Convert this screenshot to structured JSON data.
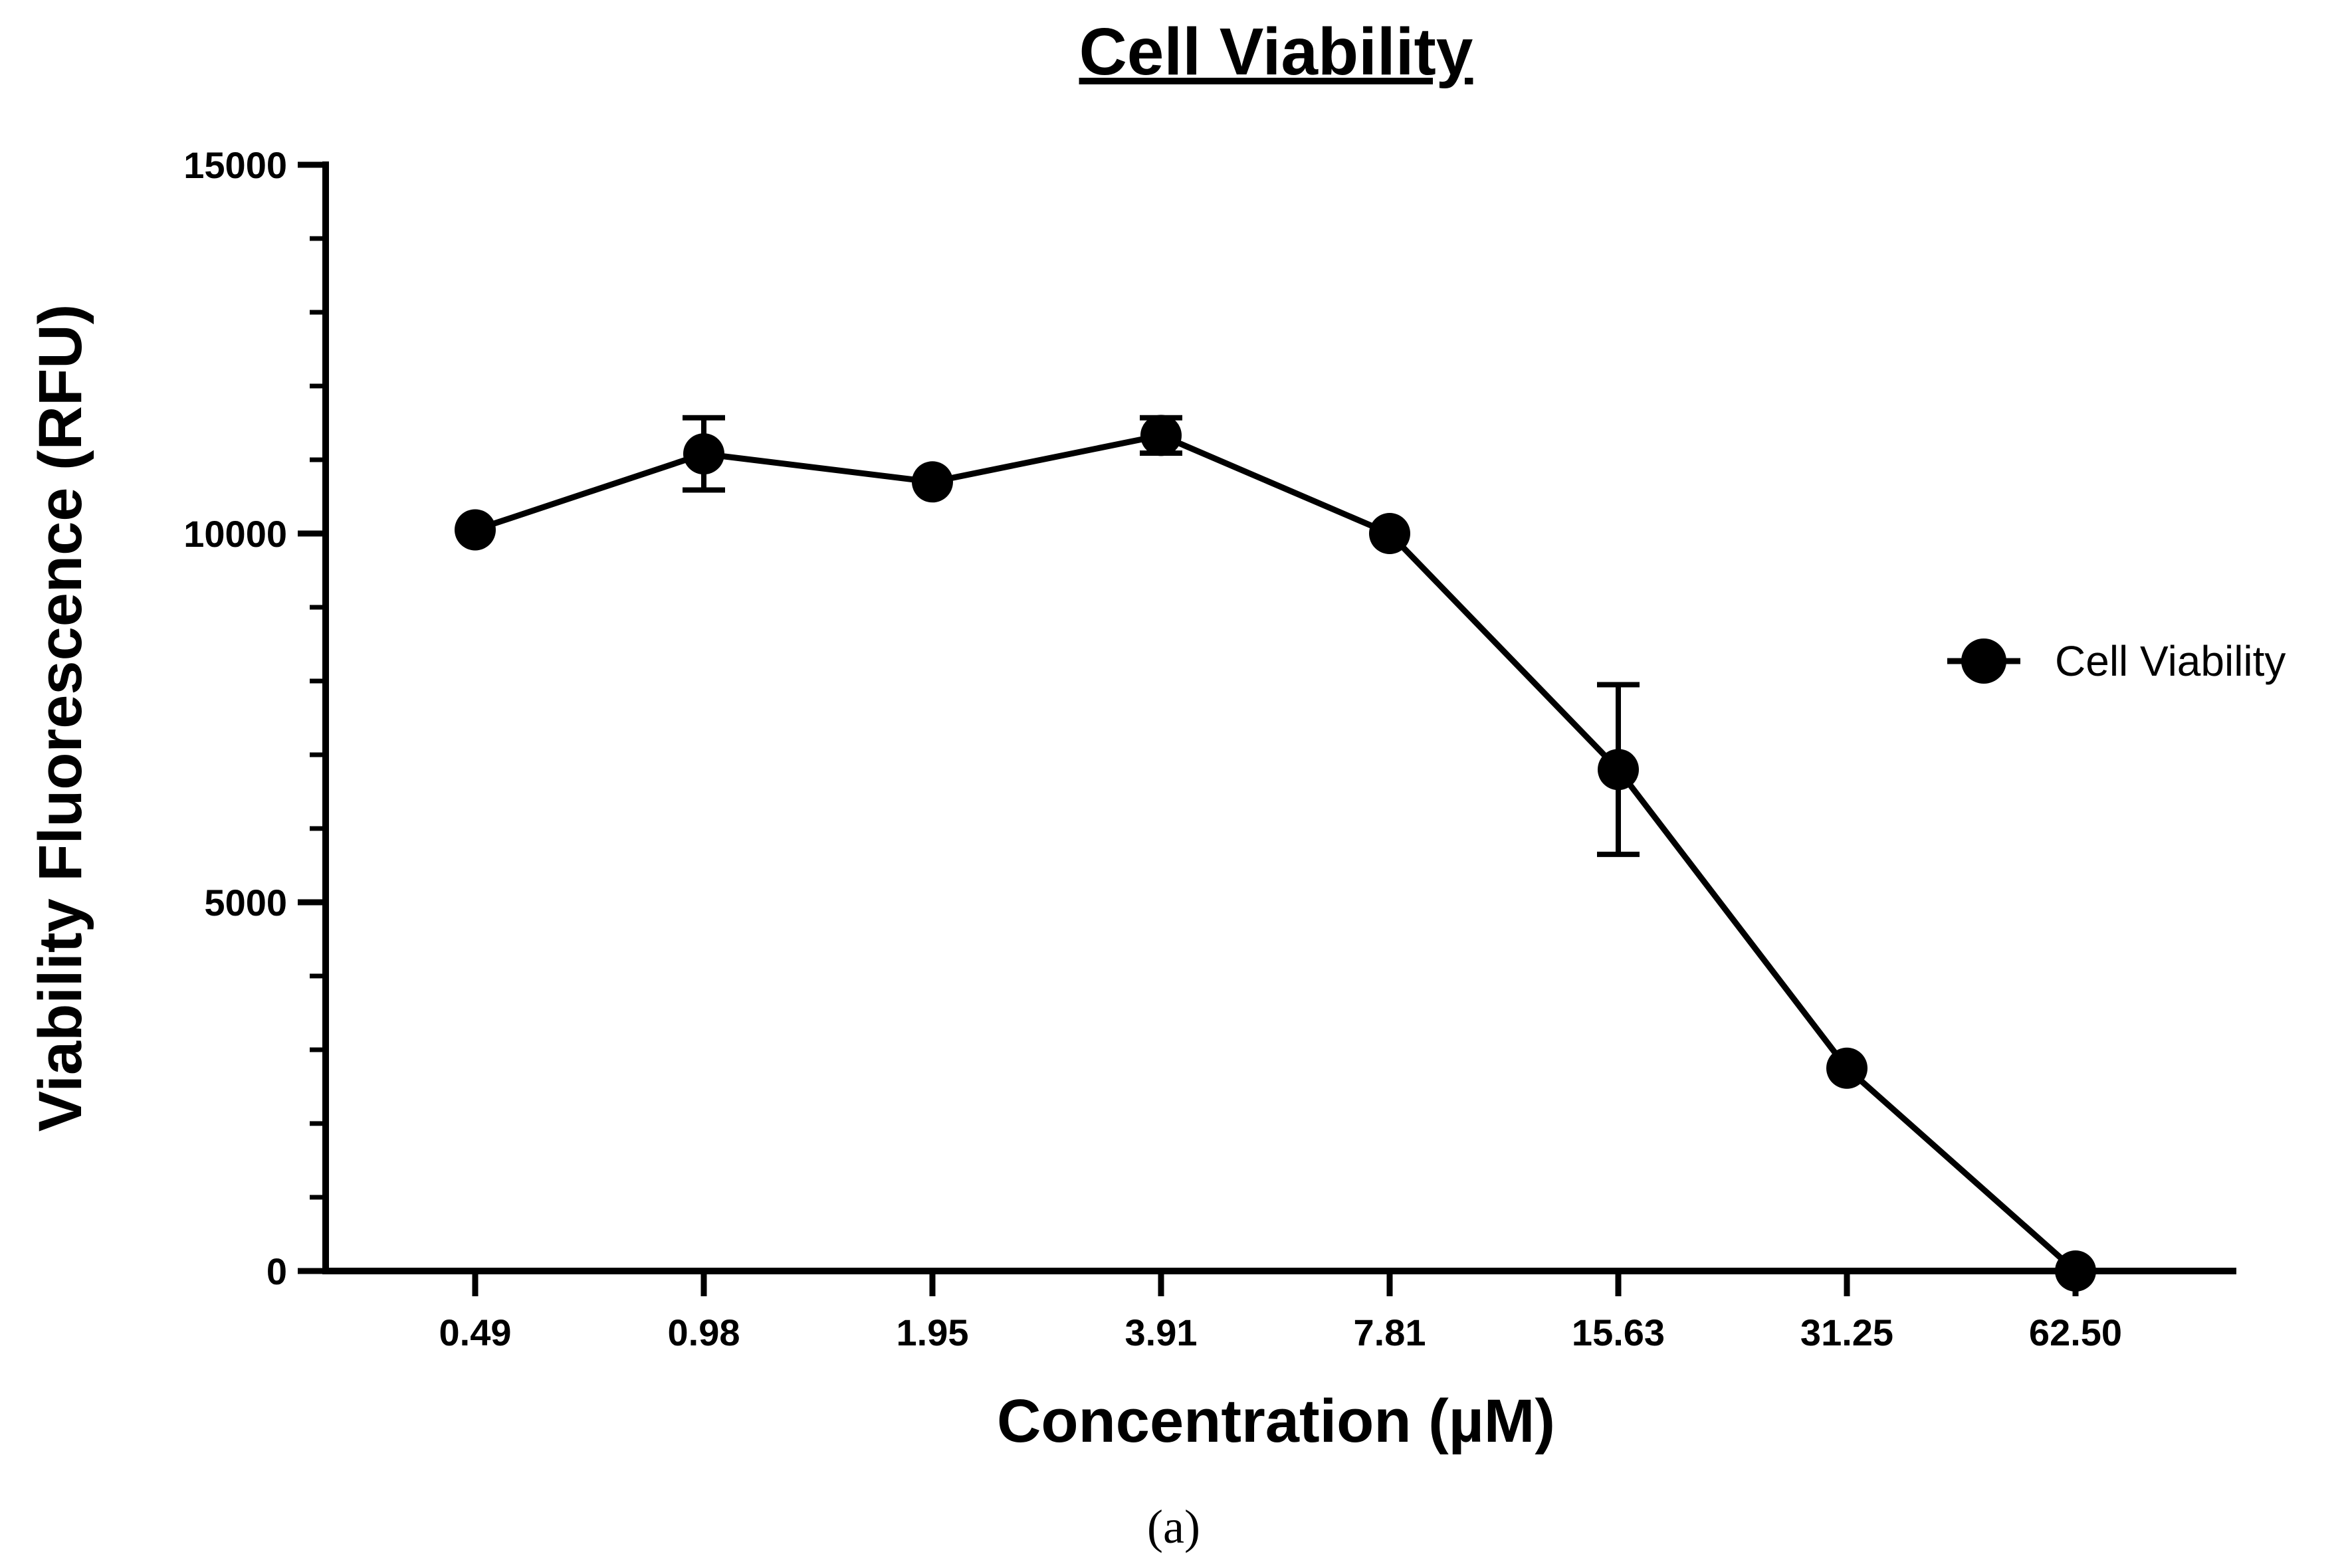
{
  "chart_data": {
    "type": "line",
    "title": "Cell Viability",
    "xlabel": "Concentration (µM)",
    "ylabel": "Viability Fluorescence (RFU)",
    "categories": [
      "0.49",
      "0.98",
      "1.95",
      "3.91",
      "7.81",
      "15.63",
      "31.25",
      "62.50"
    ],
    "series": [
      {
        "name": "Cell Viability",
        "values": [
          10050,
          11080,
          10700,
          11330,
          10000,
          6800,
          2750,
          0
        ],
        "error": [
          0,
          490,
          0,
          240,
          0,
          1150,
          0,
          0
        ]
      }
    ],
    "ylim": [
      0,
      15000
    ],
    "yticks": [
      "0",
      "5000",
      "10000",
      "15000"
    ],
    "legend_position": "right",
    "grid": false
  },
  "caption": "(a)",
  "colors": {
    "line": "#000000",
    "marker": "#000000",
    "background": "#ffffff"
  }
}
